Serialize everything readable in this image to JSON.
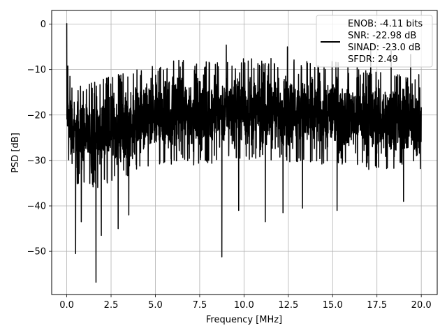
{
  "chart_data": {
    "type": "line",
    "title": "",
    "xlabel": "Frequency [MHz]",
    "ylabel": "PSD [dB]",
    "xlim": [
      -0.85,
      20.9
    ],
    "ylim": [
      -59.5,
      3
    ],
    "xticks": [
      0.0,
      2.5,
      5.0,
      7.5,
      10.0,
      12.5,
      15.0,
      17.5,
      20.0
    ],
    "xtick_labels": [
      "0.0",
      "2.5",
      "5.0",
      "7.5",
      "10.0",
      "12.5",
      "15.0",
      "17.5",
      "20.0"
    ],
    "yticks": [
      0,
      -10,
      -20,
      -30,
      -40,
      -50
    ],
    "ytick_labels": [
      "0",
      "−10",
      "−20",
      "−30",
      "−40",
      "−50"
    ],
    "grid": true,
    "legend_position": "top-right",
    "series": [
      {
        "name": "ENOB: -4.11 bits\nSNR: -22.98 dB\nSINAD: -23.0 dB\nSFDR: 2.49",
        "legend_lines": [
          "ENOB: -4.11 bits",
          "SNR: -22.98 dB",
          "SINAD: -23.0 dB",
          "SFDR: 2.49"
        ],
        "color": "#000000",
        "x_range": [
          0.0,
          20.0
        ],
        "envelope": {
          "x": [
            0.0,
            0.5,
            1.0,
            2.0,
            3.0,
            4.0,
            5.0,
            6.0,
            7.0,
            8.0,
            9.0,
            10.0,
            11.0,
            12.0,
            13.0,
            14.0,
            15.0,
            16.0,
            17.0,
            18.0,
            19.0,
            20.0
          ],
          "high": [
            -12,
            -14,
            -13,
            -12,
            -11,
            -10,
            -9,
            -8,
            -8,
            -8,
            -8,
            -7,
            -8,
            -7,
            -8,
            -8,
            -8,
            -9,
            -10,
            -10,
            -10,
            -11
          ],
          "low": [
            -30,
            -35,
            -36,
            -36,
            -34,
            -33,
            -32,
            -31,
            -31,
            -31,
            -30,
            -30,
            -30,
            -30,
            -31,
            -31,
            -31,
            -31,
            -32,
            -32,
            -32,
            -33
          ]
        },
        "peaks": [
          {
            "x": 0.0,
            "y": 0.2
          },
          {
            "x": 0.06,
            "y": -9.2
          },
          {
            "x": 0.18,
            "y": -11.5
          },
          {
            "x": 9.0,
            "y": -4.6
          },
          {
            "x": 12.45,
            "y": -5.0
          },
          {
            "x": 17.15,
            "y": -5.3
          },
          {
            "x": 19.4,
            "y": -6.7
          },
          {
            "x": 18.3,
            "y": -5.6
          }
        ],
        "dips": [
          {
            "x": 0.5,
            "y": -50.5
          },
          {
            "x": 0.82,
            "y": -43.5
          },
          {
            "x": 1.65,
            "y": -56.8
          },
          {
            "x": 1.95,
            "y": -46.5
          },
          {
            "x": 2.9,
            "y": -45.0
          },
          {
            "x": 3.5,
            "y": -42.0
          },
          {
            "x": 8.75,
            "y": -51.2
          },
          {
            "x": 9.7,
            "y": -41.0
          },
          {
            "x": 11.2,
            "y": -43.5
          },
          {
            "x": 12.2,
            "y": -41.5
          },
          {
            "x": 13.3,
            "y": -40.5
          },
          {
            "x": 15.25,
            "y": -41.0
          },
          {
            "x": 19.0,
            "y": -39.0
          }
        ]
      }
    ]
  }
}
